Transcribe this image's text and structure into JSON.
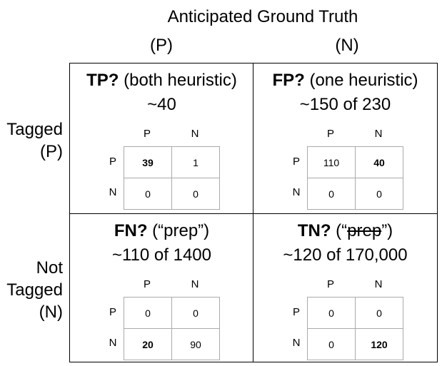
{
  "header": {
    "title": "Anticipated Ground Truth",
    "col_p": "(P)",
    "col_n": "(N)"
  },
  "rows": {
    "top": {
      "line1": "Tagged",
      "line2": "(P)"
    },
    "bottom": {
      "line1": "Not",
      "line2": "Tagged",
      "line3": "(N)"
    }
  },
  "quadrants": {
    "tl": {
      "bold": "TP?",
      "rest": " (both heuristic)",
      "sub": "~40",
      "cells": [
        "39",
        "1",
        "0",
        "0"
      ]
    },
    "tr": {
      "bold": "FP?",
      "rest": " (one heuristic)",
      "sub": "~150 of 230",
      "cells": [
        "110",
        "40",
        "0",
        "0"
      ]
    },
    "bl": {
      "bold": "FN?",
      "rest": " (“prep”)",
      "sub": "~110 of 1400",
      "cells": [
        "0",
        "0",
        "20",
        "90"
      ]
    },
    "br": {
      "bold": "TN?",
      "pre": " (“",
      "strike": "prep",
      "post": "”)",
      "sub": "~120 of 170,000",
      "cells": [
        "0",
        "0",
        "0",
        "120"
      ]
    }
  },
  "mini_headers": {
    "p": "P",
    "n": "N"
  }
}
